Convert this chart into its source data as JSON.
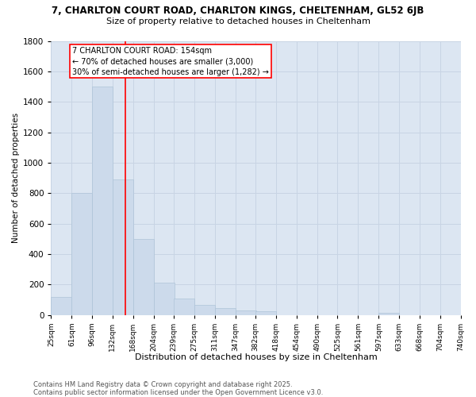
{
  "title1": "7, CHARLTON COURT ROAD, CHARLTON KINGS, CHELTENHAM, GL52 6JB",
  "title2": "Size of property relative to detached houses in Cheltenham",
  "xlabel": "Distribution of detached houses by size in Cheltenham",
  "ylabel": "Number of detached properties",
  "bar_heights": [
    120,
    800,
    1500,
    890,
    500,
    215,
    110,
    65,
    45,
    30,
    25,
    0,
    0,
    0,
    0,
    0,
    15,
    0,
    0,
    0
  ],
  "bar_color": "#ccdaeb",
  "bar_edgecolor": "#aec4d8",
  "bar_linewidth": 0.5,
  "grid_color": "#c8d4e4",
  "bg_color": "#dce6f2",
  "vline_x": 154,
  "vline_color": "red",
  "vline_linewidth": 1.2,
  "ylim": [
    0,
    1800
  ],
  "yticks": [
    0,
    200,
    400,
    600,
    800,
    1000,
    1200,
    1400,
    1600,
    1800
  ],
  "annotation_text": "7 CHARLTON COURT ROAD: 154sqm\n← 70% of detached houses are smaller (3,000)\n30% of semi-detached houses are larger (1,282) →",
  "annotation_box_color": "white",
  "annotation_box_edgecolor": "red",
  "annotation_fontsize": 7.0,
  "footer1": "Contains HM Land Registry data © Crown copyright and database right 2025.",
  "footer2": "Contains public sector information licensed under the Open Government Licence v3.0.",
  "tick_labels": [
    "25sqm",
    "61sqm",
    "96sqm",
    "132sqm",
    "168sqm",
    "204sqm",
    "239sqm",
    "275sqm",
    "311sqm",
    "347sqm",
    "382sqm",
    "418sqm",
    "454sqm",
    "490sqm",
    "525sqm",
    "561sqm",
    "597sqm",
    "633sqm",
    "668sqm",
    "704sqm",
    "740sqm"
  ],
  "bin_starts": [
    25,
    61,
    96,
    132,
    168,
    204,
    239,
    275,
    311,
    347,
    382,
    418,
    454,
    490,
    525,
    561,
    597,
    633,
    668,
    704
  ],
  "bin_width": 36,
  "n_bins": 20,
  "xlim_left": 25,
  "xlim_right": 740
}
